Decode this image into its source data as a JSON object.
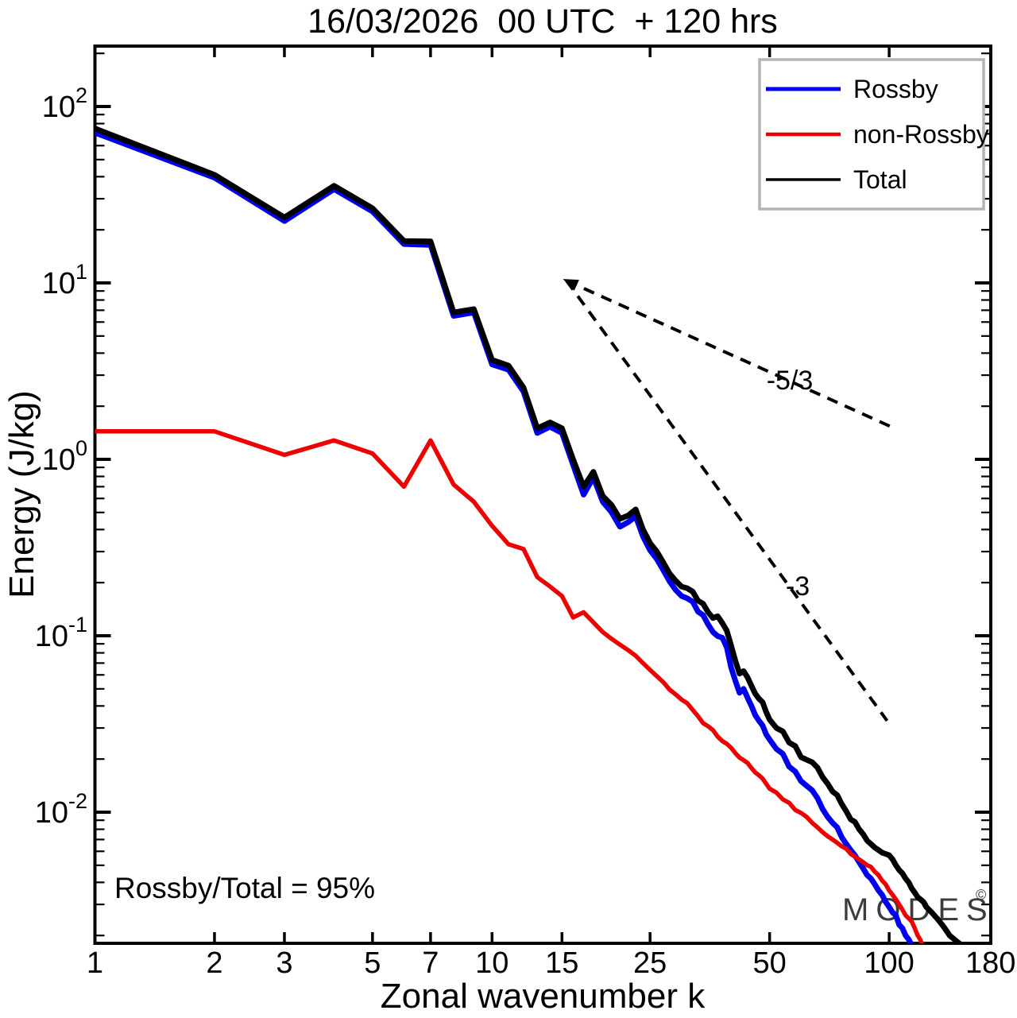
{
  "title": "16/03/2026  00 UTC  + 120 hrs",
  "watermark": {
    "text": "MODES",
    "symbol": "©"
  },
  "colors": {
    "background": "#ffffff",
    "axis": "#000000",
    "watermark": "#3c3c3c",
    "legend_border": "#b4b4b4"
  },
  "chart_data": {
    "type": "line",
    "title": "16/03/2026  00 UTC  + 120 hrs",
    "xlabel": "Zonal wavenumber k",
    "ylabel": "Energy (J/kg)",
    "x_scale": "log",
    "y_scale": "log",
    "xlim": [
      1,
      180
    ],
    "ylim": [
      0.0018,
      220
    ],
    "x_ticks": [
      1,
      2,
      3,
      5,
      7,
      10,
      15,
      25,
      50,
      100,
      180
    ],
    "y_tick_exponents": [
      2,
      1,
      0,
      -1,
      -2
    ],
    "grid": false,
    "annotation": "Rossby/Total = 95%",
    "legend": {
      "position": "top-right",
      "entries": [
        {
          "label": "Rossby",
          "color": "#0000ee"
        },
        {
          "label": "non-Rossby",
          "color": "#ee0000"
        },
        {
          "label": "Total",
          "color": "#000000"
        }
      ]
    },
    "reference_lines": [
      {
        "label": "-5/3",
        "points": [
          [
            15.4,
            10.3
          ],
          [
            102.5,
            1.51
          ]
        ],
        "arrow_at_start": true
      },
      {
        "label": "-3",
        "points": [
          [
            15.4,
            10.3
          ],
          [
            98.8,
            0.033
          ]
        ],
        "arrow_at_start": false
      }
    ],
    "series": [
      {
        "name": "rossby",
        "label": "Rossby",
        "color": "#0000ee",
        "width": 7,
        "points": [
          [
            1,
            71
          ],
          [
            2,
            39.5
          ],
          [
            3,
            22.4
          ],
          [
            4,
            34
          ],
          [
            5,
            25.4
          ],
          [
            6,
            16.6
          ],
          [
            7,
            16.4
          ],
          [
            8,
            6.5
          ],
          [
            9,
            6.8
          ],
          [
            10,
            3.45
          ],
          [
            11,
            3.22
          ],
          [
            12,
            2.42
          ],
          [
            13,
            1.41
          ],
          [
            14,
            1.53
          ],
          [
            15,
            1.41
          ],
          [
            16,
            0.93
          ],
          [
            17,
            0.63
          ],
          [
            18,
            0.79
          ],
          [
            19,
            0.575
          ],
          [
            20,
            0.5
          ],
          [
            21,
            0.415
          ],
          [
            22,
            0.44
          ],
          [
            23,
            0.475
          ],
          [
            24,
            0.365
          ],
          [
            25,
            0.305
          ],
          [
            26,
            0.272
          ],
          [
            27,
            0.235
          ],
          [
            28,
            0.203
          ],
          [
            29,
            0.182
          ],
          [
            30,
            0.168
          ],
          [
            31,
            0.163
          ],
          [
            32,
            0.156
          ],
          [
            33,
            0.137
          ],
          [
            34,
            0.131
          ],
          [
            35,
            0.116
          ],
          [
            36,
            0.105
          ],
          [
            37,
            0.0995
          ],
          [
            38,
            0.0975
          ],
          [
            39,
            0.086
          ],
          [
            40,
            0.066
          ],
          [
            41,
            0.0555
          ],
          [
            42,
            0.0475
          ],
          [
            43,
            0.05
          ],
          [
            44,
            0.0445
          ],
          [
            45,
            0.04
          ],
          [
            46,
            0.0355
          ],
          [
            47,
            0.033
          ],
          [
            48,
            0.031
          ],
          [
            49,
            0.0276
          ],
          [
            50,
            0.0258
          ],
          [
            52,
            0.0228
          ],
          [
            54,
            0.0214
          ],
          [
            56,
            0.0181
          ],
          [
            58,
            0.017
          ],
          [
            60,
            0.015
          ],
          [
            62,
            0.0141
          ],
          [
            64,
            0.0133
          ],
          [
            66,
            0.012
          ],
          [
            68,
            0.0104
          ],
          [
            70,
            0.0094
          ],
          [
            72,
            0.0087
          ],
          [
            74,
            0.0082
          ],
          [
            76,
            0.0072
          ],
          [
            78,
            0.0066
          ],
          [
            80,
            0.0061
          ],
          [
            82,
            0.0057
          ],
          [
            84,
            0.0052
          ],
          [
            86,
            0.0048
          ],
          [
            88,
            0.0044
          ],
          [
            90,
            0.0042
          ],
          [
            92,
            0.0039
          ],
          [
            94,
            0.0036
          ],
          [
            96,
            0.0034
          ],
          [
            98,
            0.0031
          ],
          [
            100,
            0.0029
          ],
          [
            102,
            0.0027
          ],
          [
            104,
            0.0026
          ],
          [
            106,
            0.0023
          ],
          [
            108,
            0.0022
          ],
          [
            110,
            0.002
          ],
          [
            112,
            0.0019
          ],
          [
            113,
            0.00183
          ],
          [
            114,
            0.00172
          ]
        ]
      },
      {
        "name": "non_rossby",
        "label": "non-Rossby",
        "color": "#ee0000",
        "width": 5.5,
        "points": [
          [
            1,
            1.44
          ],
          [
            2,
            1.44
          ],
          [
            3,
            1.06
          ],
          [
            4,
            1.28
          ],
          [
            5,
            1.08
          ],
          [
            6,
            0.7
          ],
          [
            7,
            1.28
          ],
          [
            8,
            0.72
          ],
          [
            9,
            0.575
          ],
          [
            10,
            0.42
          ],
          [
            11,
            0.33
          ],
          [
            12,
            0.31
          ],
          [
            13,
            0.215
          ],
          [
            14,
            0.19
          ],
          [
            15,
            0.168
          ],
          [
            16,
            0.127
          ],
          [
            17,
            0.136
          ],
          [
            18,
            0.119
          ],
          [
            19,
            0.105
          ],
          [
            20,
            0.096
          ],
          [
            21,
            0.089
          ],
          [
            22,
            0.083
          ],
          [
            23,
            0.077
          ],
          [
            24,
            0.07
          ],
          [
            25,
            0.064
          ],
          [
            26,
            0.059
          ],
          [
            27,
            0.0545
          ],
          [
            28,
            0.0495
          ],
          [
            29,
            0.0465
          ],
          [
            30,
            0.0435
          ],
          [
            31,
            0.0415
          ],
          [
            32,
            0.038
          ],
          [
            33,
            0.035
          ],
          [
            34,
            0.032
          ],
          [
            35,
            0.0307
          ],
          [
            36,
            0.0292
          ],
          [
            37,
            0.0268
          ],
          [
            38,
            0.0253
          ],
          [
            39,
            0.0244
          ],
          [
            40,
            0.0232
          ],
          [
            41,
            0.0216
          ],
          [
            42,
            0.0204
          ],
          [
            43,
            0.0197
          ],
          [
            44,
            0.019
          ],
          [
            45,
            0.0178
          ],
          [
            46,
            0.0168
          ],
          [
            47,
            0.0162
          ],
          [
            48,
            0.0155
          ],
          [
            49,
            0.0145
          ],
          [
            50,
            0.0136
          ],
          [
            52,
            0.0129
          ],
          [
            54,
            0.0118
          ],
          [
            56,
            0.0113
          ],
          [
            58,
            0.0103
          ],
          [
            60,
            0.0099
          ],
          [
            62,
            0.0094
          ],
          [
            64,
            0.0087
          ],
          [
            66,
            0.0082
          ],
          [
            68,
            0.0077
          ],
          [
            70,
            0.0073
          ],
          [
            72,
            0.007
          ],
          [
            74,
            0.0067
          ],
          [
            76,
            0.0064
          ],
          [
            78,
            0.0062
          ],
          [
            80,
            0.0058
          ],
          [
            82,
            0.0056
          ],
          [
            84,
            0.0054
          ],
          [
            86,
            0.0052
          ],
          [
            88,
            0.005
          ],
          [
            90,
            0.0049
          ],
          [
            92,
            0.0046
          ],
          [
            94,
            0.0044
          ],
          [
            96,
            0.0041
          ],
          [
            98,
            0.0039
          ],
          [
            100,
            0.0036
          ],
          [
            102,
            0.0034
          ],
          [
            104,
            0.0032
          ],
          [
            106,
            0.003
          ],
          [
            108,
            0.0028
          ],
          [
            110,
            0.0026
          ],
          [
            112,
            0.0025
          ],
          [
            114,
            0.0024
          ],
          [
            116,
            0.0022
          ],
          [
            118,
            0.002
          ],
          [
            120,
            0.00188
          ],
          [
            121,
            0.00178
          ]
        ]
      },
      {
        "name": "total",
        "label": "Total",
        "color": "#000000",
        "width": 7,
        "points": [
          [
            1,
            75
          ],
          [
            2,
            41
          ],
          [
            3,
            23.5
          ],
          [
            4,
            35.5
          ],
          [
            5,
            26.5
          ],
          [
            6,
            17.3
          ],
          [
            7,
            17.2
          ],
          [
            8,
            6.8
          ],
          [
            9,
            7.1
          ],
          [
            10,
            3.66
          ],
          [
            11,
            3.4
          ],
          [
            12,
            2.55
          ],
          [
            13,
            1.5
          ],
          [
            14,
            1.62
          ],
          [
            15,
            1.5
          ],
          [
            16,
            1.0
          ],
          [
            17,
            0.7
          ],
          [
            18,
            0.85
          ],
          [
            19,
            0.62
          ],
          [
            20,
            0.55
          ],
          [
            21,
            0.46
          ],
          [
            22,
            0.48
          ],
          [
            23,
            0.52
          ],
          [
            24,
            0.4
          ],
          [
            25,
            0.335
          ],
          [
            26,
            0.3
          ],
          [
            27,
            0.26
          ],
          [
            28,
            0.225
          ],
          [
            29,
            0.205
          ],
          [
            30,
            0.19
          ],
          [
            31,
            0.186
          ],
          [
            32,
            0.178
          ],
          [
            33,
            0.158
          ],
          [
            34,
            0.152
          ],
          [
            35,
            0.136
          ],
          [
            36,
            0.126
          ],
          [
            37,
            0.129
          ],
          [
            38,
            0.118
          ],
          [
            39,
            0.107
          ],
          [
            40,
            0.088
          ],
          [
            41,
            0.072
          ],
          [
            42,
            0.061
          ],
          [
            43,
            0.063
          ],
          [
            44,
            0.058
          ],
          [
            45,
            0.052
          ],
          [
            46,
            0.047
          ],
          [
            47,
            0.044
          ],
          [
            48,
            0.042
          ],
          [
            49,
            0.037
          ],
          [
            50,
            0.0335
          ],
          [
            52,
            0.03
          ],
          [
            54,
            0.0287
          ],
          [
            56,
            0.0248
          ],
          [
            58,
            0.0237
          ],
          [
            60,
            0.0205
          ],
          [
            62,
            0.0198
          ],
          [
            64,
            0.0192
          ],
          [
            66,
            0.0179
          ],
          [
            68,
            0.0158
          ],
          [
            70,
            0.0145
          ],
          [
            72,
            0.0131
          ],
          [
            74,
            0.0125
          ],
          [
            76,
            0.0111
          ],
          [
            78,
            0.0101
          ],
          [
            80,
            0.0091
          ],
          [
            82,
            0.0088
          ],
          [
            84,
            0.008
          ],
          [
            86,
            0.0075
          ],
          [
            88,
            0.0069
          ],
          [
            90,
            0.0066
          ],
          [
            92,
            0.0063
          ],
          [
            94,
            0.0061
          ],
          [
            96,
            0.0059
          ],
          [
            98,
            0.0058
          ],
          [
            100,
            0.0057
          ],
          [
            102,
            0.0054
          ],
          [
            104,
            0.005
          ],
          [
            106,
            0.0047
          ],
          [
            108,
            0.0045
          ],
          [
            110,
            0.0042
          ],
          [
            112,
            0.004
          ],
          [
            114,
            0.0037
          ],
          [
            116,
            0.0035
          ],
          [
            118,
            0.0033
          ],
          [
            120,
            0.0032
          ],
          [
            122,
            0.0031
          ],
          [
            124,
            0.0029
          ],
          [
            126,
            0.0028
          ],
          [
            128,
            0.0027
          ],
          [
            130,
            0.0026
          ],
          [
            132,
            0.0025
          ],
          [
            134,
            0.0024
          ],
          [
            136,
            0.0023
          ],
          [
            138,
            0.0022
          ],
          [
            140,
            0.0021
          ],
          [
            142,
            0.002
          ],
          [
            144,
            0.00195
          ],
          [
            146,
            0.0019
          ],
          [
            148,
            0.00185
          ],
          [
            150,
            0.00181
          ],
          [
            152,
            0.00168
          ]
        ]
      }
    ]
  }
}
